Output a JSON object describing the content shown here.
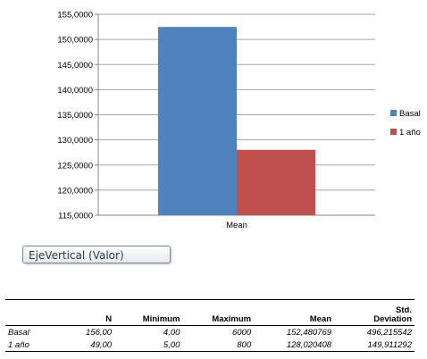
{
  "chart_data": {
    "type": "bar",
    "categories": [
      "Mean"
    ],
    "series": [
      {
        "name": "Basal",
        "values": [
          152.480769
        ],
        "color": "#4f81bd"
      },
      {
        "name": "1 año",
        "values": [
          128.020408
        ],
        "color": "#c0504d"
      }
    ],
    "ylim": [
      115,
      155
    ],
    "yticks": [
      "115,0000",
      "120,0000",
      "125,0000",
      "130,0000",
      "135,0000",
      "140,0000",
      "145,0000",
      "150,0000",
      "155,0000"
    ],
    "grid": true,
    "legend": "right"
  },
  "axis_button": {
    "label": "EjeVertical (Valor)"
  },
  "table": {
    "headers": [
      "",
      "N",
      "Minimum",
      "Maximum",
      "Mean",
      "Std.\nDeviation"
    ],
    "rows": [
      [
        "Basal",
        "156,00",
        "4,00",
        "6000",
        "152,480769",
        "496,215542"
      ],
      [
        "1 año",
        "49,00",
        "5,00",
        "800",
        "128,020408",
        "149,911292"
      ]
    ]
  }
}
